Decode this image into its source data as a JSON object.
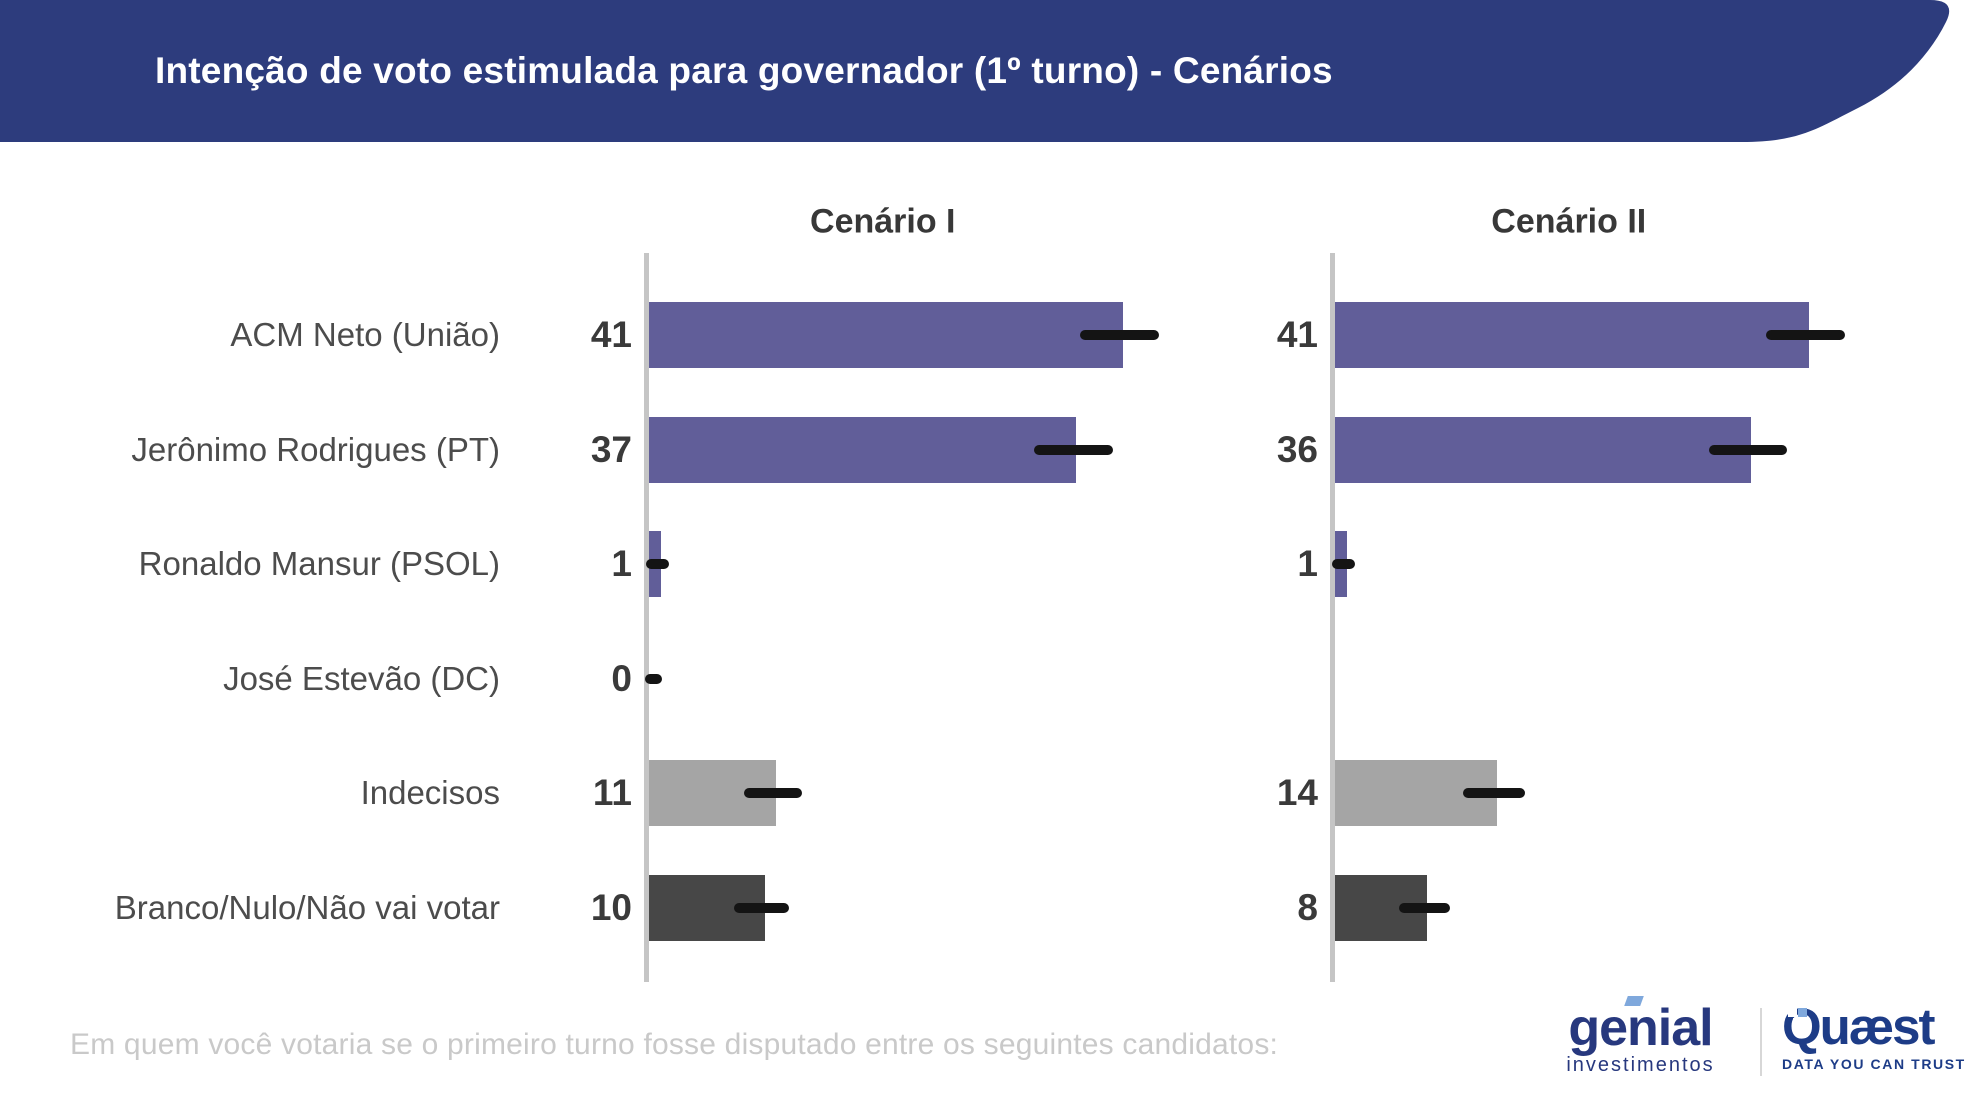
{
  "header": {
    "title": "Intenção de voto estimulada para governador (1º turno) - Cenários",
    "bg_color": "#2d3c7d",
    "text_color": "#ffffff"
  },
  "footer": {
    "question": "Em quem você votaria se o primeiro turno fosse disputado entre os seguintes candidatos:"
  },
  "logos": {
    "genial": {
      "name": "genial",
      "sub": "investimentos",
      "color": "#27387e",
      "accent_color": "#7fa8dc"
    },
    "quaest": {
      "name": "Quæst",
      "tagline": "DATA YOU CAN TRUST",
      "color": "#1d3c87"
    }
  },
  "chart_data": {
    "type": "bar",
    "orientation": "horizontal",
    "categories": [
      "ACM Neto (União)",
      "Jerônimo Rodrigues (PT)",
      "Ronaldo Mansur (PSOL)",
      "José Estevão (DC)",
      "Indecisos",
      "Branco/Nulo/Não vai votar"
    ],
    "series": [
      {
        "name": "Cenário I",
        "values": [
          41,
          37,
          1,
          0,
          11,
          10
        ],
        "errors": [
          3.4,
          3.4,
          1.0,
          1.4,
          2.5,
          2.4
        ]
      },
      {
        "name": "Cenário II",
        "values": [
          41,
          36,
          1,
          null,
          14,
          8
        ],
        "errors": [
          3.4,
          3.4,
          1.0,
          null,
          2.7,
          2.2
        ]
      }
    ],
    "bar_colors": [
      "#615e99",
      "#615e99",
      "#615e99",
      "#615e99",
      "#a5a5a5",
      "#474747"
    ],
    "axis_color": "#c5c5c5",
    "error_bar_color": "#141414",
    "value_color": "#3a3a3a",
    "label_color": "#4c4c4c",
    "xlim": [
      0,
      45
    ],
    "grid": false,
    "legend": false
  }
}
